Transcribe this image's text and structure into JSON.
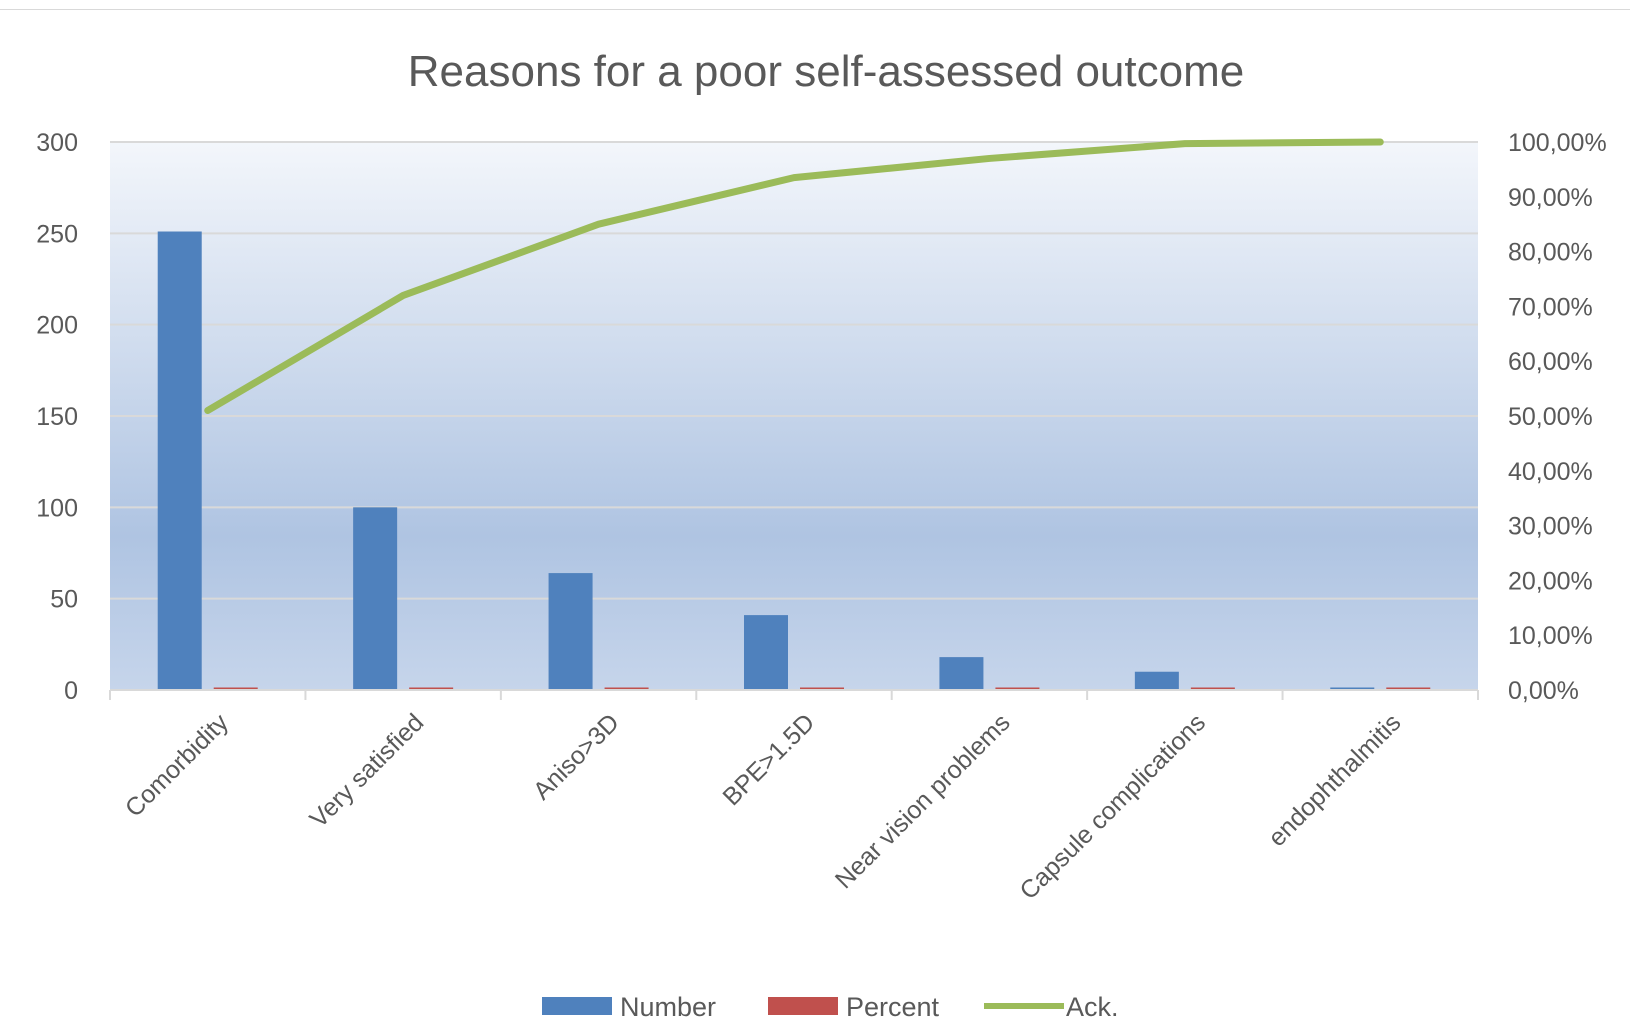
{
  "chart_data": {
    "type": "bar",
    "title": "Reasons for a poor self-assessed outcome",
    "categories": [
      "Comorbidity",
      "Very satisfied",
      "Aniso>3D",
      "BPE>1.5D",
      "Near vision problems",
      "Capsule complications",
      "endophthalmitis"
    ],
    "series": [
      {
        "name": "Number",
        "type": "bar",
        "axis": "primary",
        "color": "#4f81bd",
        "values": [
          251,
          100,
          64,
          41,
          18,
          10,
          1
        ]
      },
      {
        "name": "Percent",
        "type": "bar",
        "axis": "primary",
        "color": "#c0504d",
        "values": [
          0.51,
          0.21,
          0.13,
          0.08,
          0.04,
          0.02,
          0.002
        ]
      },
      {
        "name": "Ack.",
        "type": "line",
        "axis": "secondary",
        "color": "#9bbb59",
        "values": [
          0.51,
          0.72,
          0.85,
          0.935,
          0.97,
          0.997,
          1.0
        ]
      }
    ],
    "y_primary": {
      "range": [
        0,
        300
      ],
      "ticks": [
        "0",
        "50",
        "100",
        "150",
        "200",
        "250",
        "300"
      ]
    },
    "y_secondary": {
      "range": [
        0,
        1
      ],
      "ticks": [
        "0,00%",
        "10,00%",
        "20,00%",
        "30,00%",
        "40,00%",
        "50,00%",
        "60,00%",
        "70,00%",
        "80,00%",
        "90,00%",
        "100,00%"
      ]
    },
    "grid": true,
    "legend_position": "bottom"
  }
}
